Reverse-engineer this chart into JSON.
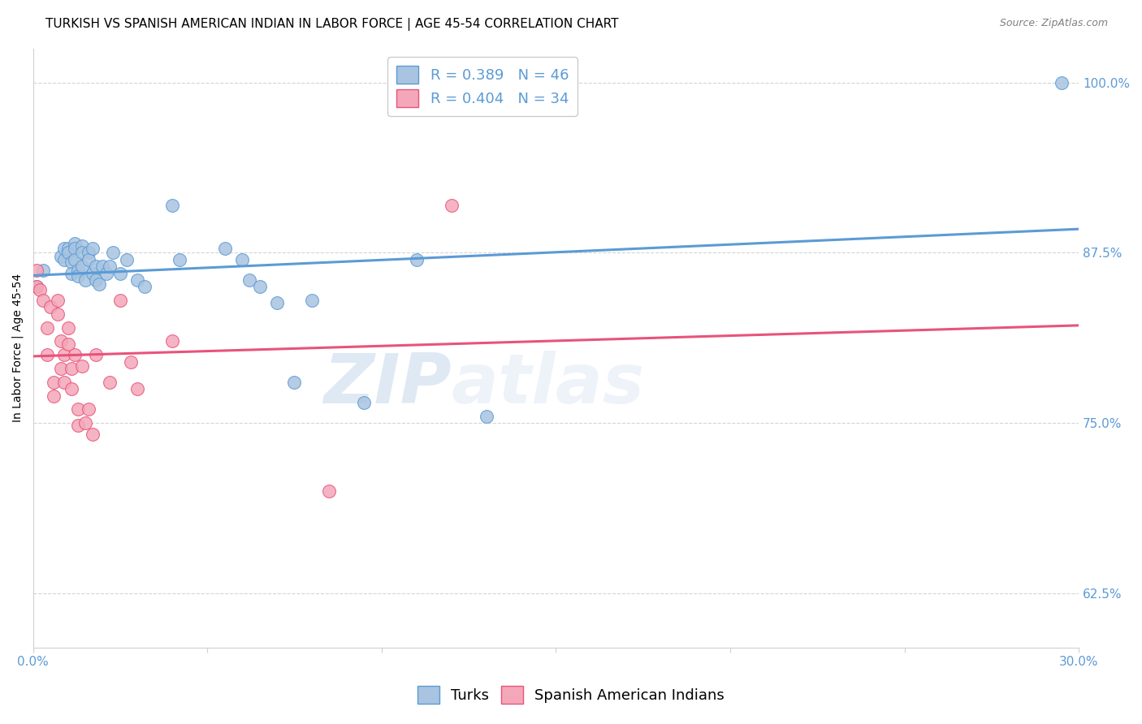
{
  "title": "TURKISH VS SPANISH AMERICAN INDIAN IN LABOR FORCE | AGE 45-54 CORRELATION CHART",
  "source": "Source: ZipAtlas.com",
  "ylabel": "In Labor Force | Age 45-54",
  "xlabel": "",
  "xlim": [
    0.0,
    0.3
  ],
  "ylim": [
    0.585,
    1.025
  ],
  "yticks": [
    0.625,
    0.75,
    0.875,
    1.0
  ],
  "ytick_labels": [
    "62.5%",
    "75.0%",
    "87.5%",
    "100.0%"
  ],
  "xticks": [
    0.0,
    0.05,
    0.1,
    0.15,
    0.2,
    0.25,
    0.3
  ],
  "xtick_labels": [
    "0.0%",
    "",
    "",
    "",
    "",
    "",
    "30.0%"
  ],
  "turks_R": 0.389,
  "turks_N": 46,
  "spanish_R": 0.404,
  "spanish_N": 34,
  "turks_color": "#a8c4e0",
  "spanish_color": "#f4a7b9",
  "trendline_turks_color": "#5b9bd5",
  "trendline_spanish_color": "#e8537a",
  "background_color": "#ffffff",
  "grid_color": "#d0d0d0",
  "axis_label_color": "#5b9bd5",
  "watermark_zip": "ZIP",
  "watermark_atlas": "atlas",
  "turks_x": [
    0.001,
    0.003,
    0.008,
    0.009,
    0.009,
    0.01,
    0.01,
    0.011,
    0.011,
    0.012,
    0.012,
    0.012,
    0.013,
    0.013,
    0.014,
    0.014,
    0.014,
    0.015,
    0.016,
    0.016,
    0.017,
    0.017,
    0.018,
    0.018,
    0.019,
    0.02,
    0.021,
    0.022,
    0.023,
    0.025,
    0.027,
    0.03,
    0.032,
    0.04,
    0.042,
    0.055,
    0.06,
    0.062,
    0.065,
    0.07,
    0.075,
    0.08,
    0.095,
    0.11,
    0.13,
    0.295
  ],
  "turks_y": [
    0.85,
    0.862,
    0.872,
    0.87,
    0.878,
    0.878,
    0.875,
    0.868,
    0.86,
    0.882,
    0.878,
    0.87,
    0.862,
    0.858,
    0.88,
    0.875,
    0.865,
    0.855,
    0.875,
    0.87,
    0.86,
    0.878,
    0.865,
    0.855,
    0.852,
    0.865,
    0.86,
    0.865,
    0.875,
    0.86,
    0.87,
    0.855,
    0.85,
    0.91,
    0.87,
    0.878,
    0.87,
    0.855,
    0.85,
    0.838,
    0.78,
    0.84,
    0.765,
    0.87,
    0.755,
    1.0
  ],
  "spanish_x": [
    0.001,
    0.001,
    0.002,
    0.003,
    0.004,
    0.004,
    0.005,
    0.006,
    0.006,
    0.007,
    0.007,
    0.008,
    0.008,
    0.009,
    0.009,
    0.01,
    0.01,
    0.011,
    0.011,
    0.012,
    0.013,
    0.013,
    0.014,
    0.015,
    0.016,
    0.017,
    0.018,
    0.022,
    0.025,
    0.028,
    0.03,
    0.04,
    0.085,
    0.12
  ],
  "spanish_y": [
    0.85,
    0.862,
    0.848,
    0.84,
    0.82,
    0.8,
    0.835,
    0.78,
    0.77,
    0.84,
    0.83,
    0.81,
    0.79,
    0.8,
    0.78,
    0.82,
    0.808,
    0.79,
    0.775,
    0.8,
    0.76,
    0.748,
    0.792,
    0.75,
    0.76,
    0.742,
    0.8,
    0.78,
    0.84,
    0.795,
    0.775,
    0.81,
    0.7,
    0.91
  ],
  "title_fontsize": 11,
  "source_fontsize": 9,
  "legend_fontsize": 13,
  "axis_fontsize": 10,
  "tick_fontsize": 11
}
